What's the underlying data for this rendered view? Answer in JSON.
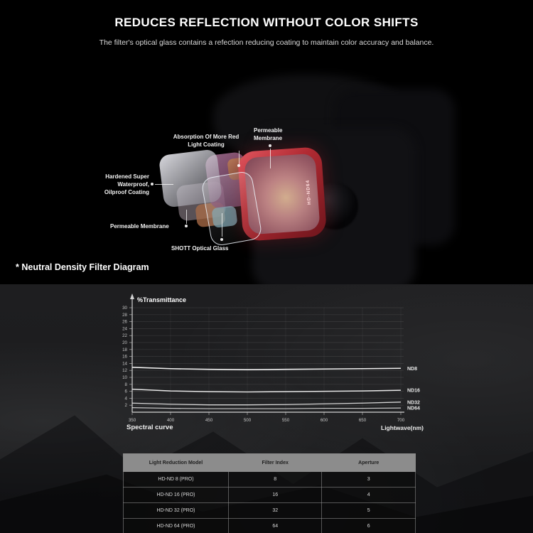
{
  "header": {
    "title": "REDUCES REFLECTION WITHOUT COLOR SHIFTS",
    "subtitle": "The filter's optical glass contains a refection reducing coating to maintain color accuracy and balance."
  },
  "hero": {
    "filter_edge_text": "HD-ND64",
    "labels": {
      "absorption": "Absorption Of More Red Light Coating",
      "permeable_top": "Permeable Membrane",
      "hardened": "Hardened Super Waterproof, Oilproof Coating",
      "permeable_bottom": "Permeable Membrane",
      "shott": "SHOTT Optical Glass"
    },
    "caption": "* Neutral Density Filter Diagram"
  },
  "chart_data": {
    "type": "line",
    "title": "%Transmittance",
    "xlabel": "Lightwave(nm)",
    "corner_label": "Spectral curve",
    "x": [
      350,
      400,
      450,
      500,
      550,
      600,
      650,
      700
    ],
    "xlim": [
      350,
      700
    ],
    "ylim": [
      0,
      30
    ],
    "ytick_step": 2,
    "grid": true,
    "legend_position": "right-of-line-ends",
    "series": [
      {
        "name": "ND8",
        "values": [
          12.9,
          12.5,
          12.3,
          12.2,
          12.3,
          12.4,
          12.5,
          12.6
        ]
      },
      {
        "name": "ND16",
        "values": [
          6.6,
          6.1,
          5.9,
          5.8,
          5.9,
          6.0,
          6.1,
          6.3
        ]
      },
      {
        "name": "ND32",
        "values": [
          2.6,
          2.3,
          2.1,
          2.1,
          2.2,
          2.4,
          2.6,
          2.9
        ]
      },
      {
        "name": "ND64",
        "values": [
          1.3,
          1.1,
          1.0,
          1.0,
          1.0,
          1.1,
          1.1,
          1.2
        ]
      }
    ]
  },
  "table": {
    "headers": [
      "Light Reduction Model",
      "Filter Index",
      "Aperture"
    ],
    "rows": [
      [
        "HD-ND 8 (PRO)",
        "8",
        "3"
      ],
      [
        "HD-ND 16 (PRO)",
        "16",
        "4"
      ],
      [
        "HD-ND 32 (PRO)",
        "32",
        "5"
      ],
      [
        "HD-ND 64 (PRO)",
        "64",
        "6"
      ]
    ]
  },
  "colors": {
    "top_background": "#000000",
    "bottom_background": "#1d1d1f",
    "filter_frame_red": "#b02a32",
    "chart_line": "#efefef",
    "table_header_bg": "#8c8c8c"
  }
}
